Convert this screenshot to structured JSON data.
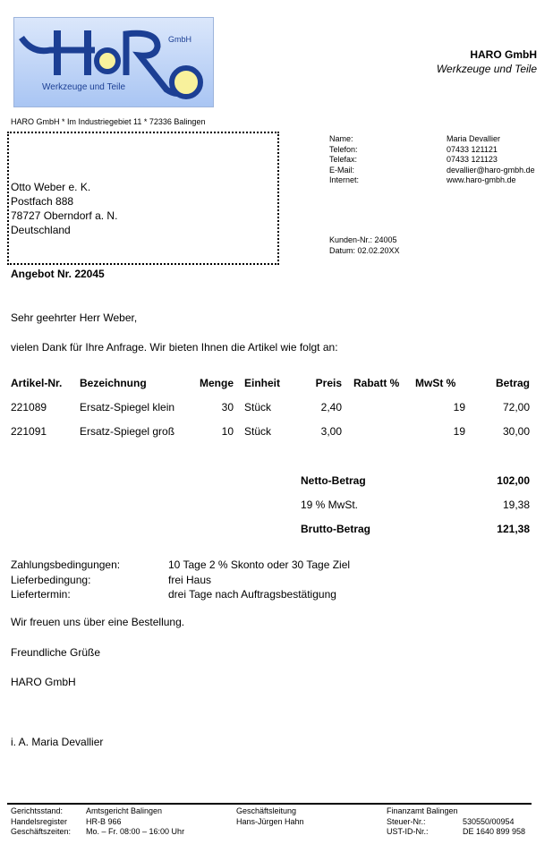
{
  "logo": {
    "text": "HaRo",
    "gmbh": "GmbH",
    "slogan": "Werkzeuge und Teile",
    "colors": {
      "blue": "#1c3f94",
      "yellow": "#f8f19c",
      "bg": "#c4d7f7"
    }
  },
  "header": {
    "company": "HARO GmbH",
    "tagline": "Werkzeuge und Teile",
    "sender_line": "HARO GmbH * Im Industriegebiet 11 * 72336 Balingen"
  },
  "recipient": [
    "Otto Weber e. K.",
    "Postfach 888",
    "78727 Oberndorf a. N.",
    "Deutschland"
  ],
  "contact": [
    {
      "label": "Name:",
      "value": "Maria Devallier"
    },
    {
      "label": "Telefon:",
      "value": "07433 121121"
    },
    {
      "label": "Telefax:",
      "value": "07433 121123"
    },
    {
      "label": "E-Mail:",
      "value": "devallier@haro-gmbh.de"
    },
    {
      "label": "Internet:",
      "value": "www.haro-gmbh.de"
    }
  ],
  "meta": {
    "customer": "Kunden-Nr.: 24005",
    "date": "Datum: 02.02.20XX"
  },
  "subject": "Angebot Nr. 22045",
  "salutation": "Sehr geehrter Herr Weber,",
  "intro": "vielen Dank für Ihre Anfrage. Wir bieten Ihnen die Artikel wie folgt an:",
  "table": {
    "headers": [
      "Artikel-Nr.",
      "Bezeichnung",
      "Menge",
      "Einheit",
      "Preis",
      "Rabatt %",
      "MwSt %",
      "Betrag"
    ],
    "rows": [
      [
        "221089",
        "Ersatz-Spiegel klein",
        "30",
        "Stück",
        "2,40",
        "",
        "19",
        "72,00"
      ],
      [
        "221091",
        "Ersatz-Spiegel groß",
        "10",
        "Stück",
        "3,00",
        "",
        "19",
        "30,00"
      ]
    ]
  },
  "totals": [
    {
      "label": "Netto-Betrag",
      "value": "102,00",
      "bold": true
    },
    {
      "label": "19 % MwSt.",
      "value": "19,38",
      "bold": false
    },
    {
      "label": "Brutto-Betrag",
      "value": "121,38",
      "bold": true
    }
  ],
  "terms": [
    {
      "label": "Zahlungsbedingungen:",
      "value": "10 Tage 2 % Skonto oder 30 Tage Ziel"
    },
    {
      "label": "Lieferbedingung:",
      "value": "frei Haus"
    },
    {
      "label": "Liefertermin:",
      "value": "drei Tage nach Auftragsbestätigung"
    }
  ],
  "closing": {
    "line1": "Wir freuen uns über eine Bestellung.",
    "greeting": "Freundliche Grüße",
    "company": "HARO GmbH",
    "signature": "i. A. Maria Devallier"
  },
  "footer": {
    "col1": [
      "Gerichtsstand:",
      "Handelsregister",
      "Geschäftszeiten:"
    ],
    "col2": [
      "Amtsgericht Balingen",
      "HR-B 966",
      "Mo. – Fr. 08:00 – 16:00 Uhr"
    ],
    "col3": [
      "Geschäftsleitung",
      "Hans-Jürgen Hahn"
    ],
    "col4": [
      "Finanzamt Balingen",
      "Steuer-Nr.:",
      "UST-ID-Nr.:"
    ],
    "col5": [
      "530550/00954",
      "DE 1640 899 958"
    ]
  }
}
